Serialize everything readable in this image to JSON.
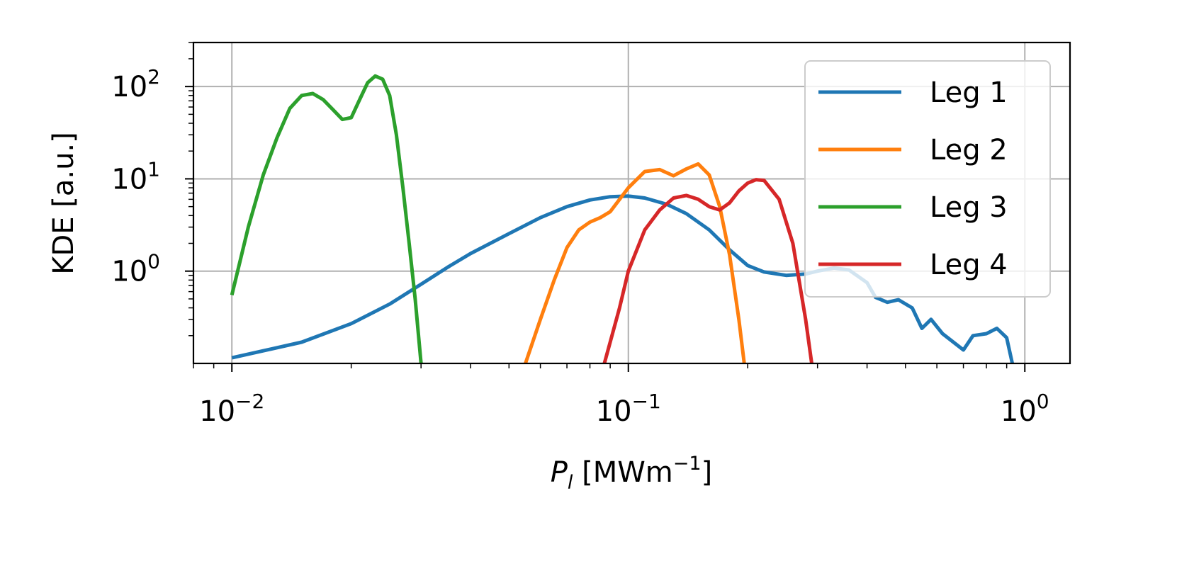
{
  "chart_data": {
    "type": "line",
    "title": "",
    "xlabel": {
      "main": "P",
      "sub": "l",
      "unit": " [MWm",
      "sup": "−1",
      "close": "]"
    },
    "ylabel": "KDE [a.u.]",
    "xscale": "log",
    "yscale": "log",
    "xlim": [
      0.008,
      1.3
    ],
    "ylim": [
      0.1,
      300
    ],
    "grid": true,
    "legend_position": "top-right",
    "x_ticks": [
      {
        "value": 0.01,
        "base": "10",
        "exp": "−2"
      },
      {
        "value": 0.1,
        "base": "10",
        "exp": "−1"
      },
      {
        "value": 1,
        "base": "10",
        "exp": "0"
      }
    ],
    "y_ticks": [
      {
        "value": 1,
        "base": "10",
        "exp": "0"
      },
      {
        "value": 10,
        "base": "10",
        "exp": "1"
      },
      {
        "value": 100,
        "base": "10",
        "exp": "2"
      }
    ],
    "series": [
      {
        "name": "Leg 1",
        "color": "#1f77b4",
        "points": [
          [
            0.01,
            0.115
          ],
          [
            0.015,
            0.17
          ],
          [
            0.02,
            0.27
          ],
          [
            0.025,
            0.44
          ],
          [
            0.03,
            0.72
          ],
          [
            0.035,
            1.1
          ],
          [
            0.04,
            1.55
          ],
          [
            0.05,
            2.55
          ],
          [
            0.06,
            3.8
          ],
          [
            0.07,
            5.0
          ],
          [
            0.08,
            5.9
          ],
          [
            0.09,
            6.4
          ],
          [
            0.1,
            6.5
          ],
          [
            0.11,
            6.2
          ],
          [
            0.125,
            5.3
          ],
          [
            0.14,
            4.2
          ],
          [
            0.16,
            2.8
          ],
          [
            0.18,
            1.7
          ],
          [
            0.2,
            1.15
          ],
          [
            0.22,
            0.98
          ],
          [
            0.25,
            0.9
          ],
          [
            0.28,
            0.93
          ],
          [
            0.3,
            1.0
          ],
          [
            0.33,
            1.08
          ],
          [
            0.36,
            1.03
          ],
          [
            0.4,
            0.75
          ],
          [
            0.42,
            0.52
          ],
          [
            0.45,
            0.46
          ],
          [
            0.48,
            0.49
          ],
          [
            0.52,
            0.4
          ],
          [
            0.55,
            0.24
          ],
          [
            0.58,
            0.3
          ],
          [
            0.62,
            0.21
          ],
          [
            0.7,
            0.14
          ],
          [
            0.74,
            0.2
          ],
          [
            0.8,
            0.21
          ],
          [
            0.85,
            0.24
          ],
          [
            0.9,
            0.19
          ],
          [
            0.93,
            0.1
          ]
        ]
      },
      {
        "name": "Leg 2",
        "color": "#ff7f0e",
        "points": [
          [
            0.055,
            0.1
          ],
          [
            0.06,
            0.3
          ],
          [
            0.065,
            0.8
          ],
          [
            0.07,
            1.8
          ],
          [
            0.075,
            2.8
          ],
          [
            0.08,
            3.4
          ],
          [
            0.085,
            3.8
          ],
          [
            0.09,
            4.4
          ],
          [
            0.1,
            8.0
          ],
          [
            0.11,
            12.0
          ],
          [
            0.12,
            12.6
          ],
          [
            0.13,
            10.8
          ],
          [
            0.14,
            12.8
          ],
          [
            0.15,
            14.5
          ],
          [
            0.16,
            11.0
          ],
          [
            0.17,
            5.0
          ],
          [
            0.18,
            1.5
          ],
          [
            0.19,
            0.3
          ],
          [
            0.196,
            0.1
          ]
        ]
      },
      {
        "name": "Leg 3",
        "color": "#2ca02c",
        "points": [
          [
            0.01,
            0.55
          ],
          [
            0.011,
            3.0
          ],
          [
            0.012,
            11.0
          ],
          [
            0.013,
            28.0
          ],
          [
            0.014,
            58.0
          ],
          [
            0.015,
            80.0
          ],
          [
            0.016,
            84.0
          ],
          [
            0.017,
            72.0
          ],
          [
            0.018,
            56.0
          ],
          [
            0.019,
            44.0
          ],
          [
            0.02,
            46.0
          ],
          [
            0.021,
            72.0
          ],
          [
            0.022,
            110.0
          ],
          [
            0.023,
            130.0
          ],
          [
            0.024,
            120.0
          ],
          [
            0.025,
            80.0
          ],
          [
            0.026,
            30.0
          ],
          [
            0.027,
            8.0
          ],
          [
            0.028,
            2.0
          ],
          [
            0.029,
            0.5
          ],
          [
            0.03,
            0.1
          ]
        ]
      },
      {
        "name": "Leg 4",
        "color": "#d62728",
        "points": [
          [
            0.087,
            0.1
          ],
          [
            0.095,
            0.4
          ],
          [
            0.1,
            1.0
          ],
          [
            0.11,
            2.8
          ],
          [
            0.12,
            4.6
          ],
          [
            0.13,
            6.2
          ],
          [
            0.14,
            6.6
          ],
          [
            0.15,
            6.0
          ],
          [
            0.16,
            5.0
          ],
          [
            0.17,
            4.6
          ],
          [
            0.18,
            5.5
          ],
          [
            0.19,
            7.4
          ],
          [
            0.2,
            9.0
          ],
          [
            0.21,
            9.8
          ],
          [
            0.22,
            9.6
          ],
          [
            0.24,
            6.0
          ],
          [
            0.26,
            2.0
          ],
          [
            0.28,
            0.3
          ],
          [
            0.29,
            0.1
          ]
        ]
      }
    ]
  }
}
